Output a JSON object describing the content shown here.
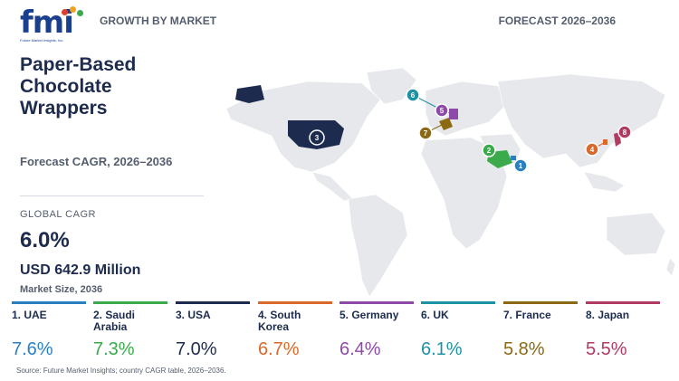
{
  "header": {
    "logo_text": "fmi",
    "logo_subtext": "Future Market Insights, Inc.",
    "left_label": "GROWTH BY MARKET",
    "right_label": "FORECAST 2026–2036"
  },
  "summary": {
    "title": "Paper-Based Chocolate Wrappers",
    "cagr_label": "Forecast CAGR, 2026–2036",
    "global_label": "GLOBAL CAGR",
    "global_value": "6.0%",
    "market_size": "USD 642.9 Million",
    "market_size_label": "Market Size, 2036"
  },
  "markers": [
    {
      "num": "1",
      "country": "UAE",
      "color": "#2a7fc0"
    },
    {
      "num": "2",
      "country": "Saudi Arabia",
      "color": "#3aaa4a"
    },
    {
      "num": "3",
      "country": "USA",
      "color": "#1d2b4f"
    },
    {
      "num": "4",
      "country": "South Korea",
      "color": "#d9692b"
    },
    {
      "num": "5",
      "country": "Germany",
      "color": "#8e4aa8"
    },
    {
      "num": "6",
      "country": "UK",
      "color": "#1b93a3"
    },
    {
      "num": "7",
      "country": "France",
      "color": "#8c6a13"
    },
    {
      "num": "8",
      "country": "Japan",
      "color": "#b13a60"
    }
  ],
  "countries": [
    {
      "name": "1. UAE",
      "value": "7.6%",
      "color": "#2a7fc0"
    },
    {
      "name": "2. Saudi Arabia",
      "value": "7.3%",
      "color": "#3aaa4a"
    },
    {
      "name": "3. USA",
      "value": "7.0%",
      "color": "#1d2b4f"
    },
    {
      "name": "4. South Korea",
      "value": "6.7%",
      "color": "#d9692b"
    },
    {
      "name": "5. Germany",
      "value": "6.4%",
      "color": "#8e4aa8"
    },
    {
      "name": "6. UK",
      "value": "6.1%",
      "color": "#1b93a3"
    },
    {
      "name": "7. France",
      "value": "5.8%",
      "color": "#8c6a13"
    },
    {
      "name": "8. Japan",
      "value": "5.5%",
      "color": "#b13a60"
    }
  ],
  "source": "Source: Future Market Insights; country CAGR table, 2026–2036."
}
